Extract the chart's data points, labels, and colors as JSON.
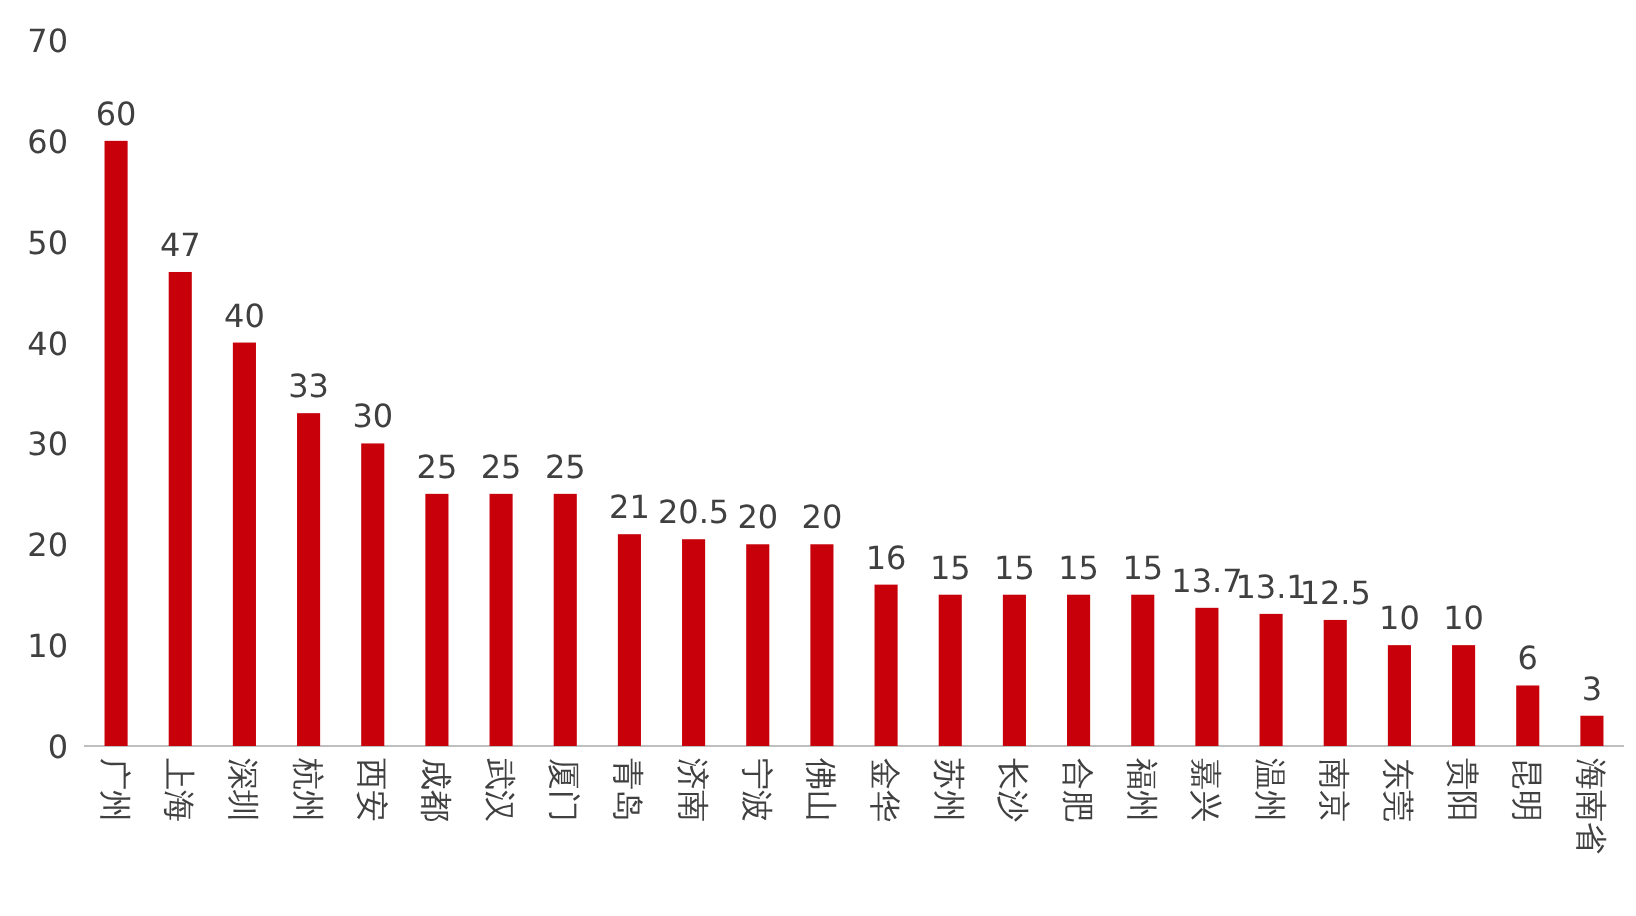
{
  "chart_data": {
    "type": "bar",
    "categories": [
      "广州",
      "上海",
      "深圳",
      "杭州",
      "西安",
      "成都",
      "武汉",
      "厦门",
      "青岛",
      "济南",
      "宁波",
      "佛山",
      "金华",
      "苏州",
      "长沙",
      "合肥",
      "福州",
      "嘉兴",
      "温州",
      "南京",
      "东莞",
      "贵阳",
      "昆明",
      "海南省"
    ],
    "values": [
      60,
      47,
      40,
      33,
      30,
      25,
      25,
      25,
      21,
      20.5,
      20,
      20,
      16,
      15,
      15,
      15,
      15,
      13.7,
      13.1,
      12.5,
      10,
      10,
      6,
      3
    ],
    "color": "#c8000a",
    "ylim": [
      0,
      70
    ],
    "yticks": [
      0,
      10,
      20,
      30,
      40,
      50,
      60,
      70
    ],
    "data_labels": true
  }
}
